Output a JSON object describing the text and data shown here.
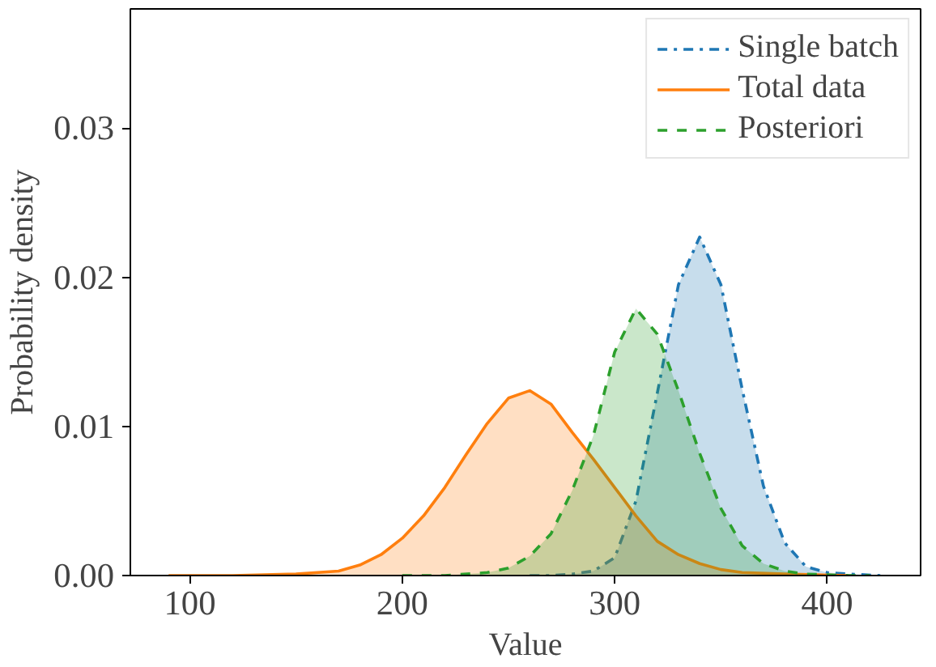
{
  "chart_data": {
    "type": "area",
    "xlabel": "Value",
    "ylabel": "Probability density",
    "xlim": [
      72,
      444
    ],
    "ylim": [
      0,
      0.038
    ],
    "xticks": [
      100,
      200,
      300,
      400
    ],
    "yticks": [
      {
        "value": 0,
        "label": "0.00"
      },
      {
        "value": 0.01,
        "label": "0.01"
      },
      {
        "value": 0.02,
        "label": "0.02"
      },
      {
        "value": 0.03,
        "label": "0.03"
      }
    ],
    "grid": false,
    "legend": "top right",
    "series": [
      {
        "name": "Single batch",
        "color": "#1f77b4",
        "line_style": "dashdot",
        "x": [
          260,
          270,
          280,
          290,
          300,
          310,
          320,
          330,
          340,
          350,
          360,
          370,
          380,
          390,
          400,
          410,
          425
        ],
        "values": [
          0,
          0,
          0.0001,
          0.0003,
          0.0012,
          0.005,
          0.0122,
          0.0195,
          0.0227,
          0.0195,
          0.0125,
          0.006,
          0.0022,
          0.0006,
          0.0002,
          0.0001,
          0
        ]
      },
      {
        "name": "Total data",
        "color": "#ff7f0e",
        "line_style": "solid",
        "x": [
          90,
          120,
          150,
          170,
          180,
          190,
          200,
          210,
          220,
          230,
          240,
          250,
          260,
          270,
          280,
          290,
          300,
          310,
          320,
          330,
          340,
          350,
          360,
          380,
          410
        ],
        "values": [
          0,
          0,
          0.0001,
          0.0003,
          0.0007,
          0.0014,
          0.0025,
          0.004,
          0.0059,
          0.0081,
          0.0102,
          0.0119,
          0.0124,
          0.0115,
          0.0096,
          0.0078,
          0.0059,
          0.004,
          0.0023,
          0.0014,
          0.0008,
          0.0004,
          0.0002,
          0.0001,
          0
        ]
      },
      {
        "name": "Posteriori",
        "color": "#2ca02c",
        "line_style": "dashed",
        "x": [
          200,
          220,
          240,
          250,
          260,
          270,
          280,
          290,
          300,
          310,
          320,
          330,
          340,
          350,
          360,
          370,
          380,
          390,
          410,
          420
        ],
        "values": [
          0,
          0,
          0.0002,
          0.0005,
          0.0013,
          0.0028,
          0.0057,
          0.0094,
          0.015,
          0.0179,
          0.0162,
          0.0124,
          0.0082,
          0.0045,
          0.002,
          0.0008,
          0.0003,
          0.0001,
          0,
          0
        ]
      }
    ]
  }
}
